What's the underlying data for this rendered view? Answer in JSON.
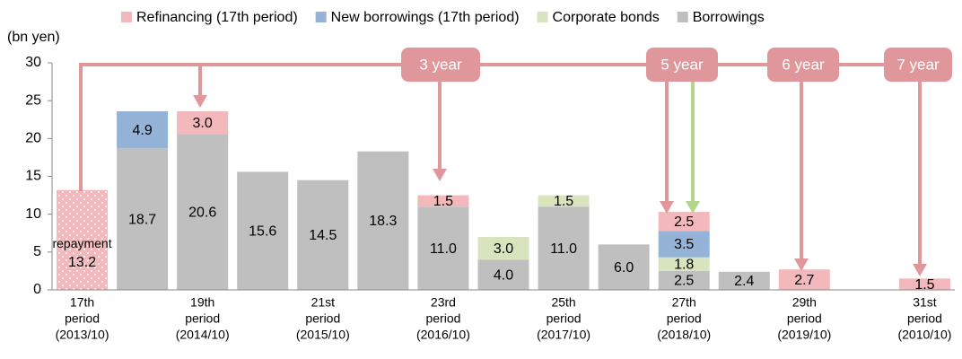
{
  "chart_data": {
    "type": "stacked_bar",
    "y_label": "(bn  yen)",
    "categories": [
      [
        "17th",
        "period",
        "(2013/10)"
      ],
      null,
      [
        "19th",
        "period",
        "(2014/10)"
      ],
      null,
      [
        "21st",
        "period",
        "(2015/10)"
      ],
      null,
      [
        "23rd",
        "period",
        "(2016/10)"
      ],
      null,
      [
        "25th",
        "period",
        "(2017/10)"
      ],
      null,
      [
        "27th",
        "period",
        "(2018/10)"
      ],
      null,
      [
        "29th",
        "period",
        "(2019/10)"
      ],
      null,
      [
        "31st",
        "period",
        "(2010/10)"
      ]
    ],
    "series": [
      {
        "name": "Borrowings",
        "color": "#bfbfbf",
        "values": [
          null,
          18.7,
          20.6,
          15.6,
          14.5,
          18.3,
          11.0,
          4.0,
          11.0,
          6.0,
          2.5,
          2.4,
          null,
          null,
          null
        ],
        "value_labels": [
          null,
          "18.7",
          "20.6",
          "15.6",
          "14.5",
          "18.3",
          "11.0",
          "4.0",
          "11.0",
          "6.0",
          "2.5",
          "2.4",
          null,
          null,
          null
        ]
      },
      {
        "name": "Corporate bonds",
        "color": "#d7e4bd",
        "values": [
          null,
          null,
          null,
          null,
          null,
          null,
          null,
          3.0,
          1.5,
          null,
          1.8,
          null,
          null,
          null,
          null
        ],
        "value_labels": [
          null,
          null,
          null,
          null,
          null,
          null,
          null,
          "3.0",
          "1.5",
          null,
          "1.8",
          null,
          null,
          null,
          null
        ]
      },
      {
        "name": "New borrowings (17th period)",
        "color": "#95b3d7",
        "values": [
          null,
          4.9,
          null,
          null,
          null,
          null,
          null,
          null,
          null,
          null,
          3.5,
          null,
          null,
          null,
          null
        ],
        "value_labels": [
          null,
          "4.9",
          null,
          null,
          null,
          null,
          null,
          null,
          null,
          null,
          "3.5",
          null,
          null,
          null,
          null
        ]
      },
      {
        "name": "Refinancing (17th period)",
        "color": "#f2b8bb",
        "values": [
          13.2,
          null,
          3.0,
          null,
          null,
          null,
          1.5,
          null,
          null,
          null,
          2.5,
          null,
          2.7,
          null,
          1.5
        ],
        "value_labels": [
          "13.2",
          null,
          "3.0",
          null,
          null,
          null,
          "1.5",
          null,
          null,
          null,
          "2.5",
          null,
          "2.7",
          null,
          "1.5"
        ]
      }
    ],
    "legend_order": [
      3,
      2,
      1,
      0
    ],
    "repayment_label": "repayment",
    "annotations": [
      "3 year",
      "5 year",
      "6 year",
      "7 year"
    ],
    "ylim": [
      0,
      30
    ],
    "yticks": [
      0,
      5,
      10,
      15,
      20,
      25,
      30
    ],
    "grid": false
  }
}
